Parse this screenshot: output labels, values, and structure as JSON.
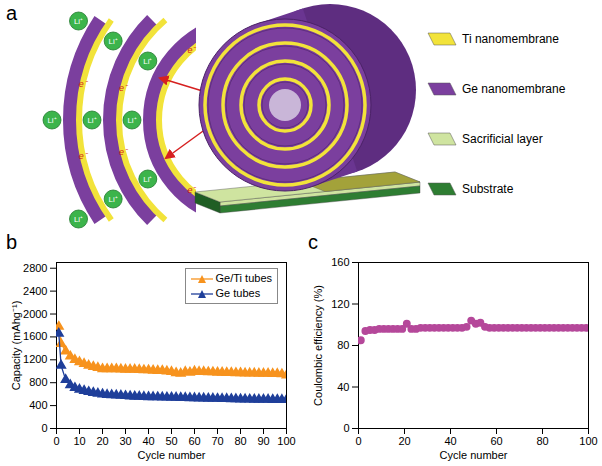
{
  "diagram": {
    "panel_label": "a",
    "ion_label": "Li⁺",
    "electron_label": "e⁻",
    "legend_items": [
      {
        "label": "Ti nanomembrane",
        "color": "#f2e33a"
      },
      {
        "label": "Ge nanomembrane",
        "color": "#7b3f9e"
      },
      {
        "label": "Sacrificial layer",
        "color": "#cfe4a0"
      },
      {
        "label": "Substrate",
        "color": "#2e7d32"
      }
    ]
  },
  "chart_data": [
    {
      "type": "line",
      "panel_label": "b",
      "x_label": "Cycle number",
      "y_label": "Capacity (mAhg⁻¹)",
      "x": [
        1,
        2,
        4,
        6,
        8,
        10,
        12,
        14,
        16,
        18,
        20,
        22,
        24,
        26,
        28,
        30,
        32,
        34,
        36,
        38,
        40,
        42,
        44,
        46,
        48,
        50,
        52,
        54,
        56,
        58,
        60,
        62,
        64,
        66,
        68,
        70,
        72,
        74,
        76,
        78,
        80,
        82,
        84,
        86,
        88,
        90,
        92,
        94,
        96,
        98,
        100
      ],
      "series": [
        {
          "name": "Ge/Ti tubes",
          "color": "#f7931e",
          "marker": "triangle",
          "values": [
            1780,
            1480,
            1350,
            1260,
            1200,
            1160,
            1130,
            1100,
            1080,
            1060,
            1040,
            1040,
            1040,
            1040,
            1035,
            1030,
            1030,
            1030,
            1025,
            1020,
            1020,
            1015,
            1010,
            1010,
            1000,
            990,
            970,
            960,
            990,
            980,
            1000,
            990,
            990,
            985,
            985,
            980,
            980,
            975,
            975,
            970,
            970,
            965,
            965,
            965,
            960,
            960,
            960,
            955,
            955,
            950,
            930
          ]
        },
        {
          "name": "Ge tubes",
          "color": "#1f3f9a",
          "marker": "triangle",
          "values": [
            1660,
            1100,
            850,
            760,
            710,
            680,
            660,
            640,
            625,
            610,
            600,
            590,
            585,
            580,
            575,
            570,
            565,
            560,
            558,
            555,
            552,
            550,
            548,
            546,
            544,
            542,
            540,
            538,
            536,
            534,
            532,
            530,
            528,
            526,
            524,
            522,
            520,
            518,
            516,
            514,
            512,
            510,
            509,
            508,
            507,
            506,
            505,
            504,
            503,
            502,
            500
          ]
        }
      ],
      "xlim": [
        0,
        100
      ],
      "xticks": [
        0,
        10,
        20,
        30,
        40,
        50,
        60,
        70,
        80,
        90,
        100
      ],
      "ylim": [
        0,
        2900
      ],
      "yticks": [
        0,
        400,
        800,
        1200,
        1600,
        2000,
        2400,
        2800
      ],
      "legend": "top-right"
    },
    {
      "type": "scatter",
      "panel_label": "c",
      "x_label": "Cycle number",
      "y_label": "Coulombic efficiency (%)",
      "x": [
        1,
        3,
        5,
        7,
        9,
        11,
        13,
        15,
        17,
        19,
        21,
        23,
        25,
        27,
        29,
        31,
        33,
        35,
        37,
        39,
        41,
        43,
        45,
        47,
        49,
        51,
        53,
        55,
        57,
        59,
        61,
        63,
        65,
        67,
        69,
        71,
        73,
        75,
        77,
        79,
        81,
        83,
        85,
        87,
        89,
        91,
        93,
        95,
        97,
        99
      ],
      "values": [
        85,
        94,
        95,
        95,
        96,
        96,
        96,
        96,
        96,
        96,
        101,
        96,
        96,
        97,
        97,
        97,
        97,
        97,
        97,
        97,
        97,
        97,
        97,
        98,
        104,
        101,
        102,
        98,
        97,
        97,
        97,
        97,
        97,
        97,
        97,
        97,
        97,
        97,
        97,
        97,
        97,
        97,
        97,
        97,
        97,
        97,
        97,
        97,
        97,
        97
      ],
      "color": "#b5489a",
      "marker": "circle",
      "xlim": [
        0,
        100
      ],
      "xticks": [
        0,
        20,
        40,
        60,
        80,
        100
      ],
      "ylim": [
        0,
        160
      ],
      "yticks": [
        0,
        40,
        80,
        120,
        160
      ]
    }
  ]
}
